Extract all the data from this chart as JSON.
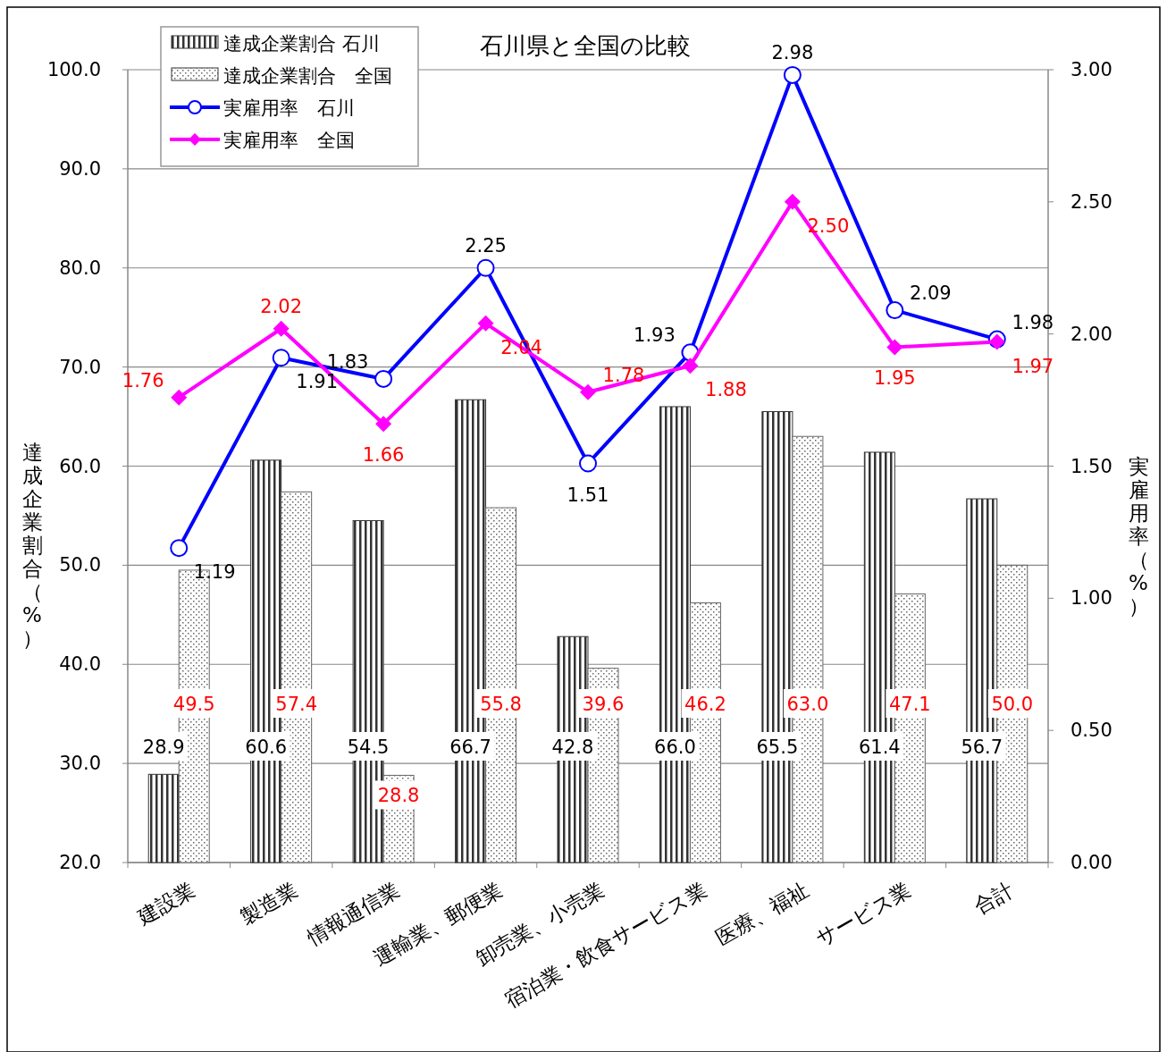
{
  "chart_data": {
    "type": "bar",
    "title": "石川県と全国の比較",
    "categories": [
      "建設業",
      "製造業",
      "情報通信業",
      "運輸業、郵便業",
      "卸売業、小売業",
      "宿泊業・飲食サービス業",
      "医療、福祉",
      "サービス業",
      "合計"
    ],
    "series": [
      {
        "name": "達成企業割合 石川",
        "color": "#333333",
        "values": [
          28.9,
          60.6,
          54.5,
          66.7,
          42.8,
          66.0,
          65.5,
          61.4,
          56.7
        ],
        "value_labels": [
          "28.9",
          "60.6",
          "54.5",
          "66.7",
          "42.8",
          "66.0",
          "65.5",
          "61.4",
          "56.7"
        ]
      },
      {
        "name": "達成企業割合　全国",
        "color": "#666666",
        "values": [
          49.5,
          57.4,
          28.8,
          55.8,
          39.6,
          46.2,
          63.0,
          47.1,
          50.0
        ],
        "value_labels": [
          "49.5",
          "57.4",
          "28.8",
          "55.8",
          "39.6",
          "46.2",
          "63.0",
          "47.1",
          "50.0"
        ]
      },
      {
        "name": "実雇用率　石川",
        "type": "line",
        "axis": "y2",
        "marker": "circle",
        "color": "#0000ff",
        "values": [
          1.19,
          1.91,
          1.83,
          2.25,
          1.51,
          1.93,
          2.98,
          2.09,
          1.98
        ],
        "value_labels": [
          "1.19",
          "1.91",
          "1.83",
          "2.25",
          "1.51",
          "1.93",
          "2.98",
          "2.09",
          "1.98"
        ]
      },
      {
        "name": "実雇用率　全国",
        "type": "line",
        "axis": "y2",
        "marker": "diamond",
        "color": "#ff00ff",
        "values": [
          1.76,
          2.02,
          1.66,
          2.04,
          1.78,
          1.88,
          2.5,
          1.95,
          1.97
        ],
        "value_labels": [
          "1.76",
          "2.02",
          "1.66",
          "2.04",
          "1.78",
          "1.88",
          "2.50",
          "1.95",
          "1.97"
        ]
      }
    ],
    "ylabel": "達成企業割合（%）",
    "y2label": "実雇用率（%）",
    "ylim": [
      20,
      100
    ],
    "yticks": [
      {
        "value": 20,
        "label": "20.0"
      },
      {
        "value": 30,
        "label": "30.0"
      },
      {
        "value": 40,
        "label": "40.0"
      },
      {
        "value": 50,
        "label": "50.0"
      },
      {
        "value": 60,
        "label": "60.0"
      },
      {
        "value": 70,
        "label": "70.0"
      },
      {
        "value": 80,
        "label": "80.0"
      },
      {
        "value": 90,
        "label": "90.0"
      },
      {
        "value": 100,
        "label": "100.0"
      }
    ],
    "y2lim": [
      0,
      3
    ],
    "y2ticks": [
      {
        "value": 0,
        "label": "0.00"
      },
      {
        "value": 0.5,
        "label": "0.50"
      },
      {
        "value": 1,
        "label": "1.00"
      },
      {
        "value": 1.5,
        "label": "1.50"
      },
      {
        "value": 2,
        "label": "2.00"
      },
      {
        "value": 2.5,
        "label": "2.50"
      },
      {
        "value": 3,
        "label": "3.00"
      }
    ],
    "grid": "y",
    "legend": "top left"
  }
}
